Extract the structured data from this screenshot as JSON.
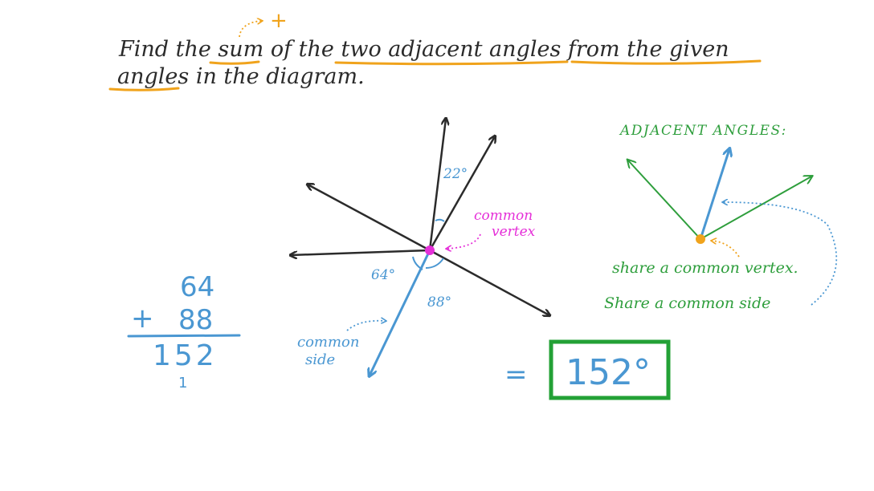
{
  "question": {
    "line1": "Find the sum of the two adjacent angles from the given",
    "line2": "angles in the diagram.",
    "annotation": "+"
  },
  "diagram": {
    "angle_top": "22°",
    "angle_left": "64°",
    "angle_right": "88°",
    "vertex_label_line1": "common",
    "vertex_label_line2": "vertex",
    "side_label_line1": "common",
    "side_label_line2": "side"
  },
  "calculation": {
    "addend1": "64",
    "addend2": "88",
    "plus_sign": "+",
    "sum": "152",
    "carry": "1"
  },
  "answer": {
    "equals": "=",
    "value": "152°"
  },
  "definition": {
    "title": "ADJACENT ANGLES:",
    "property1": "share a common vertex.",
    "property2": "Share a common side"
  },
  "colors": {
    "ink": "#2b2b2b",
    "blue": "#4a97d2",
    "magenta": "#e52fd8",
    "orange": "#f0a31c",
    "green": "#2e9e3c",
    "box_green": "#23a136"
  }
}
